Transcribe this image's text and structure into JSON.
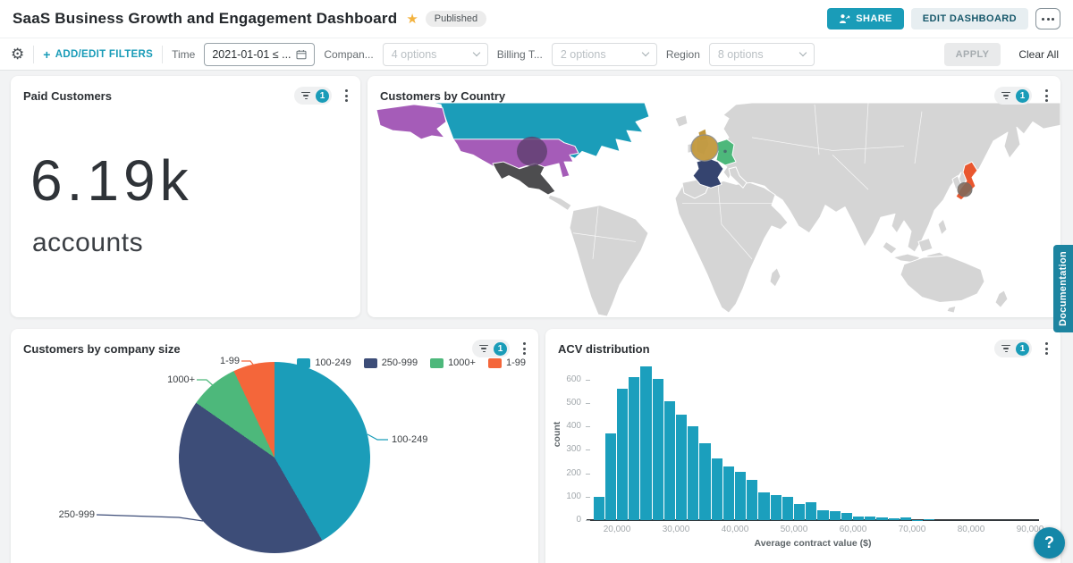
{
  "header": {
    "title": "SaaS Business Growth and Engagement Dashboard",
    "published_badge": "Published",
    "share_button": "SHARE",
    "edit_dashboard_button": "EDIT DASHBOARD"
  },
  "filter_bar": {
    "add_edit_filters": "ADD/EDIT FILTERS",
    "time_label": "Time",
    "time_value": "2021-01-01 ≤ ...",
    "company_label": "Compan...",
    "company_value": "4 options",
    "billing_label": "Billing T...",
    "billing_value": "2 options",
    "region_label": "Region",
    "region_value": "8 options",
    "apply_button": "APPLY",
    "clear_all": "Clear All"
  },
  "panels": {
    "paid_customers": {
      "title": "Paid Customers",
      "filter_badge": "1",
      "value": "6.19k",
      "unit": "accounts"
    },
    "customers_by_country": {
      "title": "Customers by Country",
      "filter_badge": "1"
    },
    "company_size": {
      "title": "Customers by company size",
      "filter_badge": "1"
    },
    "acv": {
      "title": "ACV distribution",
      "filter_badge": "1"
    }
  },
  "docs_tab_label": "Documentation",
  "help_button": "?",
  "colors": {
    "accent": "#1a9cb8",
    "map_base": "#d5d5d5"
  },
  "chart_data": [
    {
      "type": "pie",
      "title": "Customers by company size",
      "categories": [
        "100-249",
        "250-999",
        "1000+",
        "1-99"
      ],
      "values_pct": [
        41.7,
        43.0,
        8.3,
        7.0
      ],
      "colors": [
        "#1b9db9",
        "#3d4d78",
        "#4db87b",
        "#f4663a"
      ],
      "legend_position": "top-right"
    },
    {
      "type": "bar",
      "title": "ACV distribution",
      "xlabel": "Average contract value ($)",
      "ylabel": "count",
      "bin_start": 16000,
      "bin_width": 2000,
      "values": [
        98,
        370,
        563,
        610,
        655,
        605,
        507,
        449,
        400,
        328,
        262,
        230,
        207,
        172,
        117,
        108,
        100,
        70,
        78,
        43,
        38,
        30,
        17,
        17,
        12,
        6,
        10,
        2,
        4
      ],
      "x_ticks": [
        "20,000",
        "30,000",
        "40,000",
        "50,000",
        "60,000",
        "70,000",
        "80,000",
        "90,000"
      ],
      "x_tick_values": [
        20000,
        30000,
        40000,
        50000,
        60000,
        70000,
        80000,
        90000
      ],
      "y_ticks": [
        0,
        100,
        200,
        300,
        400,
        500,
        600
      ],
      "ylim": [
        0,
        660
      ],
      "xlim": [
        15500,
        91000
      ],
      "bar_color": "#1b9fbd"
    },
    {
      "type": "map",
      "title": "Customers by Country",
      "base_color": "#d5d5d5",
      "highlighted": [
        {
          "country": "Canada",
          "color": "#1b9db9"
        },
        {
          "country": "United States",
          "color": "#a55cb8",
          "bubble": "#5c3e6d"
        },
        {
          "country": "Mexico",
          "color": "#4d4d4f"
        },
        {
          "country": "United Kingdom",
          "bubble": "#c2983d"
        },
        {
          "country": "France",
          "color": "#35446f"
        },
        {
          "country": "Germany",
          "color": "#4db87b"
        },
        {
          "country": "Japan",
          "color": "#e9572f",
          "bubble": "#82695a"
        }
      ]
    }
  ]
}
